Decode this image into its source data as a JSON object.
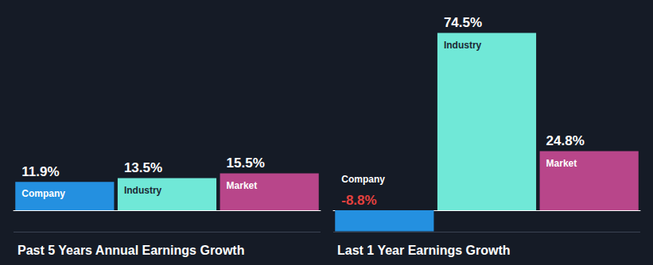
{
  "chart_data": [
    {
      "type": "bar",
      "title": "Past 5 Years Annual Earnings Growth",
      "categories": [
        "Company",
        "Industry",
        "Market"
      ],
      "values": [
        11.9,
        13.5,
        15.5
      ],
      "value_labels": [
        "11.9%",
        "13.5%",
        "15.5%"
      ],
      "colors": [
        "#2490e0",
        "#70e8d7",
        "#b8468a"
      ],
      "ylim": [
        -10,
        80
      ],
      "data_labels": true,
      "tick_labels": false,
      "grid": false
    },
    {
      "type": "bar",
      "title": "Last 1 Year Earnings Growth",
      "categories": [
        "Company",
        "Industry",
        "Market"
      ],
      "values": [
        -8.8,
        74.5,
        24.8
      ],
      "value_labels": [
        "-8.8%",
        "74.5%",
        "24.8%"
      ],
      "colors": [
        "#2490e0",
        "#70e8d7",
        "#b8468a"
      ],
      "ylim": [
        -10,
        80
      ],
      "data_labels": true,
      "tick_labels": false,
      "grid": false
    }
  ]
}
